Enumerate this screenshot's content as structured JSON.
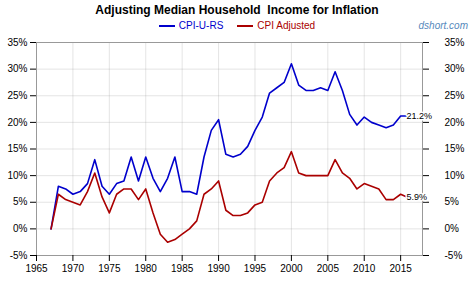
{
  "chart_data": {
    "type": "line",
    "title": "Adjusting Median Household  Income for Inflation",
    "watermark": "dshort.com",
    "x": [
      1967,
      1968,
      1969,
      1970,
      1971,
      1972,
      1973,
      1974,
      1975,
      1976,
      1977,
      1978,
      1979,
      1980,
      1981,
      1982,
      1983,
      1984,
      1985,
      1986,
      1987,
      1988,
      1989,
      1990,
      1991,
      1992,
      1993,
      1994,
      1995,
      1996,
      1997,
      1998,
      1999,
      2000,
      2001,
      2002,
      2003,
      2004,
      2005,
      2006,
      2007,
      2008,
      2009,
      2010,
      2011,
      2012,
      2013,
      2014,
      2015,
      2016
    ],
    "series": [
      {
        "name": "CPI-U-RS",
        "color": "#0000cc",
        "values": [
          0.0,
          8.0,
          7.5,
          6.5,
          7.0,
          8.5,
          13.0,
          8.0,
          6.5,
          8.5,
          9.0,
          13.5,
          9.0,
          13.5,
          9.5,
          7.0,
          9.5,
          13.5,
          7.0,
          7.0,
          6.5,
          13.5,
          18.5,
          20.5,
          14.0,
          13.5,
          14.0,
          15.5,
          18.5,
          21.0,
          25.5,
          26.5,
          27.5,
          31.0,
          27.0,
          26.0,
          26.0,
          26.5,
          26.0,
          29.5,
          26.0,
          21.5,
          19.5,
          21.0,
          20.0,
          19.5,
          19.0,
          19.5,
          21.2,
          21.2
        ]
      },
      {
        "name": "CPI Adjusted",
        "color": "#aa0000",
        "values": [
          0.0,
          6.5,
          5.5,
          5.0,
          4.5,
          7.0,
          10.5,
          6.0,
          3.0,
          6.5,
          7.5,
          7.5,
          5.5,
          7.5,
          3.0,
          -1.0,
          -2.5,
          -2.0,
          -1.0,
          0.0,
          1.5,
          6.5,
          7.5,
          9.0,
          3.5,
          2.5,
          2.5,
          3.0,
          4.5,
          5.0,
          9.0,
          10.5,
          11.5,
          14.5,
          10.5,
          10.0,
          10.0,
          10.0,
          10.0,
          13.0,
          10.5,
          9.5,
          7.5,
          8.5,
          8.0,
          7.5,
          5.5,
          5.5,
          6.5,
          5.9
        ]
      }
    ],
    "annotations": [
      {
        "text": "21.2%",
        "x": 2015.8,
        "y": 21.2
      },
      {
        "text": "5.9%",
        "x": 2015.8,
        "y": 5.9
      }
    ],
    "xlim": [
      1965,
      2018
    ],
    "xticks": [
      1965,
      1970,
      1975,
      1980,
      1985,
      1990,
      1995,
      2000,
      2005,
      2010,
      2015
    ],
    "ylim": [
      -5,
      35
    ],
    "yticks": [
      {
        "value": -5,
        "label": "-5%"
      },
      {
        "value": 0,
        "label": "0%"
      },
      {
        "value": 5,
        "label": "5%"
      },
      {
        "value": 10,
        "label": "10%"
      },
      {
        "value": 15,
        "label": "15%"
      },
      {
        "value": 20,
        "label": "20%"
      },
      {
        "value": 25,
        "label": "25%"
      },
      {
        "value": 30,
        "label": "30%"
      },
      {
        "value": 35,
        "label": "35%"
      }
    ],
    "y2lim": [
      -5,
      35
    ],
    "y2ticks": [
      {
        "value": -5,
        "label": "-5%"
      },
      {
        "value": 0,
        "label": "0%"
      },
      {
        "value": 5,
        "label": "5%"
      },
      {
        "value": 10,
        "label": "10%"
      },
      {
        "value": 15,
        "label": "15%"
      },
      {
        "value": 20,
        "label": "20%"
      },
      {
        "value": 25,
        "label": "25%"
      },
      {
        "value": 30,
        "label": "30%"
      },
      {
        "value": 35,
        "label": "35%"
      }
    ],
    "grid": true,
    "legend": "top"
  }
}
